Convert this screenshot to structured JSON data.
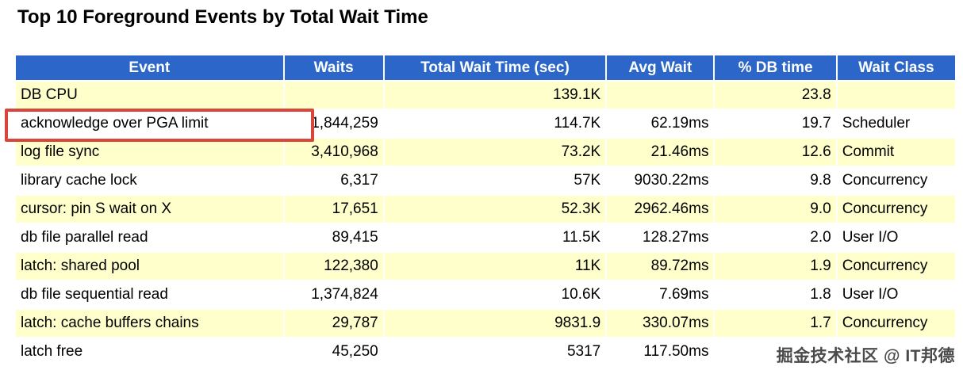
{
  "chart_data": {
    "type": "table",
    "title": "Top 10 Foreground Events by Total Wait Time",
    "columns": [
      {
        "label": "Event",
        "align": "left"
      },
      {
        "label": "Waits",
        "align": "right"
      },
      {
        "label": "Total Wait Time (sec)",
        "align": "right"
      },
      {
        "label": "Avg Wait",
        "align": "right"
      },
      {
        "label": "% DB time",
        "align": "right"
      },
      {
        "label": "Wait Class",
        "align": "left"
      }
    ],
    "rows": [
      [
        "DB CPU",
        "",
        "139.1K",
        "",
        "23.8",
        ""
      ],
      [
        "acknowledge over PGA limit",
        "1,844,259",
        "114.7K",
        "62.19ms",
        "19.7",
        "Scheduler"
      ],
      [
        "log file sync",
        "3,410,968",
        "73.2K",
        "21.46ms",
        "12.6",
        "Commit"
      ],
      [
        "library cache lock",
        "6,317",
        "57K",
        "9030.22ms",
        "9.8",
        "Concurrency"
      ],
      [
        "cursor: pin S wait on X",
        "17,651",
        "52.3K",
        "2962.46ms",
        "9.0",
        "Concurrency"
      ],
      [
        "db file parallel read",
        "89,415",
        "11.5K",
        "128.27ms",
        "2.0",
        "User I/O"
      ],
      [
        "latch: shared pool",
        "122,380",
        "11K",
        "89.72ms",
        "1.9",
        "Concurrency"
      ],
      [
        "db file sequential read",
        "1,374,824",
        "10.6K",
        "7.69ms",
        "1.8",
        "User I/O"
      ],
      [
        "latch: cache buffers chains",
        "29,787",
        "9831.9",
        "330.07ms",
        "1.7",
        "Concurrency"
      ],
      [
        "latch free",
        "45,250",
        "5317",
        "117.50ms",
        "",
        ""
      ]
    ]
  },
  "highlight": {
    "highlighted_event": "acknowledge over PGA limit",
    "border_color": "#d9453b"
  },
  "watermark": {
    "text": "掘金技术社区 @ IT邦德"
  },
  "colors": {
    "header_bg": "#2b66c8",
    "header_text": "#ffffff",
    "row_alt_bg": "#ffffcc",
    "row_bg": "#ffffff",
    "body_text": "#000000",
    "watermark_text": "#4a4a4a"
  }
}
